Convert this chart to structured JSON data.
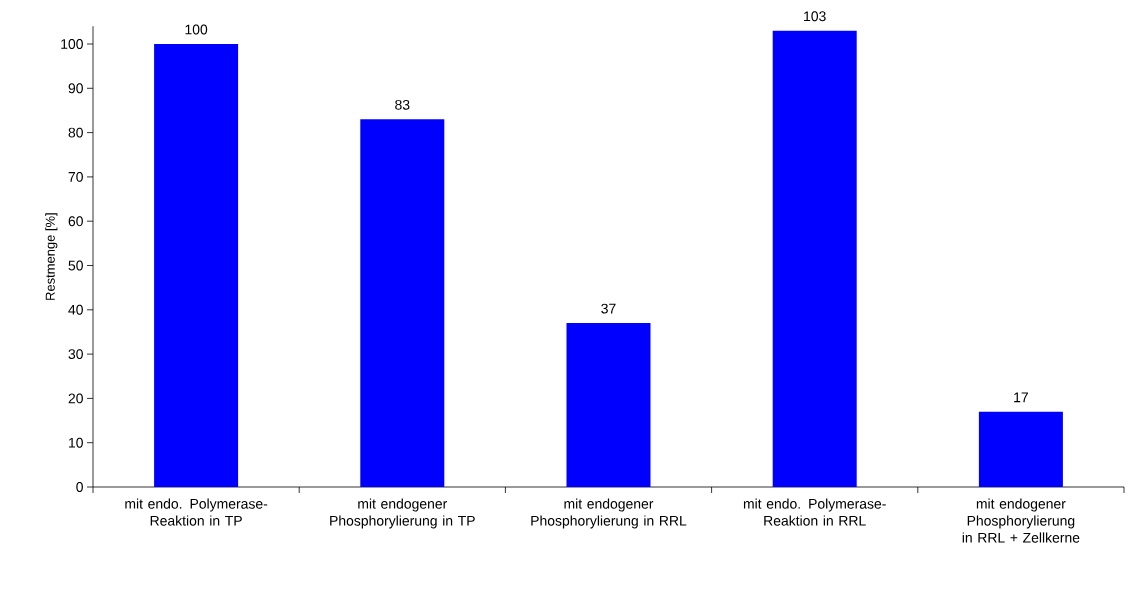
{
  "chart_data": {
    "type": "bar",
    "ylabel": "Restmenge [%]",
    "categories": [
      "mit endo. Polymerase-Reaktion in TP",
      "mit endogener Phosphorylierung in TP",
      "mit endogener Phosphorylierung in RRL",
      "mit endo. Polymerase-Reaktion in RRL",
      "mit endogener Phosphorylierung in RRL + Zellkerne"
    ],
    "values": [
      100,
      83,
      37,
      103,
      17
    ],
    "color": "#0000ff",
    "ylim": [
      0,
      104
    ],
    "yticks": [
      0,
      10,
      20,
      30,
      40,
      50,
      60,
      70,
      80,
      90,
      100
    ],
    "data_labels": true
  }
}
